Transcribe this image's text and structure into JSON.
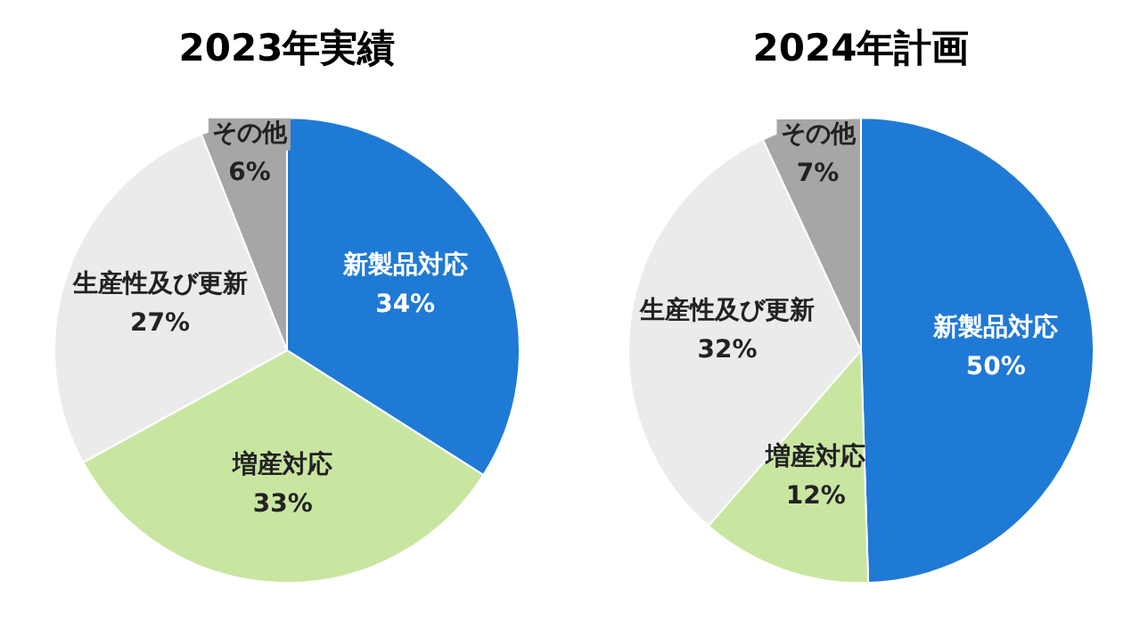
{
  "chart_data": [
    {
      "type": "pie",
      "title": "2023年実績",
      "categories": [
        "新製品対応",
        "増産対応",
        "生産性及び更新",
        "その他"
      ],
      "values": [
        34,
        33,
        27,
        6
      ],
      "value_labels": [
        "34%",
        "33%",
        "27%",
        "6%"
      ],
      "colors": [
        "#1f7ad6",
        "#c9e6a1",
        "#ebebeb",
        "#a6a6a6"
      ]
    },
    {
      "type": "pie",
      "title": "2024年計画",
      "categories": [
        "新製品対応",
        "増産対応",
        "生産性及び更新",
        "その他"
      ],
      "values": [
        50,
        12,
        32,
        7
      ],
      "value_labels": [
        "50%",
        "12%",
        "32%",
        "7%"
      ],
      "colors": [
        "#1f7ad6",
        "#c9e6a1",
        "#ebebeb",
        "#a6a6a6"
      ]
    }
  ]
}
